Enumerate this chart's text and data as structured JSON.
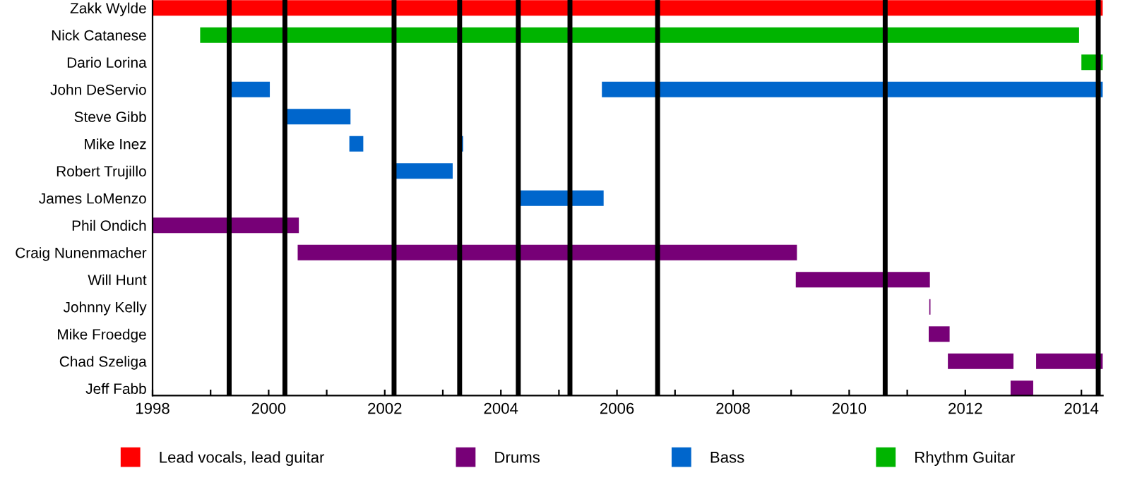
{
  "chart_data": {
    "type": "bar",
    "orientation": "horizontal",
    "categories": [
      "Zakk Wylde",
      "Nick Catanese",
      "Dario Lorina",
      "John DeServio",
      "Steve Gibb",
      "Mike Inez",
      "Robert Trujillo",
      "James LoMenzo",
      "Phil Ondich",
      "Craig Nunenmacher",
      "Will Hunt",
      "Johnny Kelly",
      "Mike Froedge",
      "Chad Szeliga",
      "Jeff Fabb"
    ],
    "series": [
      {
        "name": "Lead vocals, lead guitar",
        "color": "#ff0000",
        "base": [
          1998.0,
          null,
          null,
          null,
          null,
          null,
          null,
          null,
          null,
          null,
          null,
          null,
          null,
          null,
          null
        ],
        "values": [
          16.37,
          null,
          null,
          null,
          null,
          null,
          null,
          null,
          null,
          null,
          null,
          null,
          null,
          null,
          null
        ]
      },
      {
        "name": "Drums",
        "color": "#770077",
        "base": [
          null,
          null,
          null,
          null,
          null,
          null,
          null,
          null,
          1998.0,
          2000.5,
          2009.08,
          2011.38,
          2011.37,
          2011.7,
          2012.78
        ],
        "values": [
          null,
          null,
          null,
          null,
          null,
          null,
          null,
          null,
          2.52,
          8.6,
          2.31,
          0.02,
          0.36,
          1.13,
          0.39
        ]
      },
      {
        "name": "Bass",
        "color": "#0066cc",
        "base": [
          null,
          null,
          null,
          1999.32,
          2000.28,
          2001.39,
          2002.16,
          2004.3,
          null,
          null,
          null,
          null,
          null,
          null,
          null
        ],
        "values": [
          null,
          null,
          null,
          0.7,
          1.13,
          0.24,
          1.01,
          1.47,
          null,
          null,
          null,
          null,
          null,
          null,
          null
        ]
      },
      {
        "name": "Rhythm Guitar",
        "color": "#00b400",
        "base": [
          null,
          1998.82,
          2014.0,
          null,
          null,
          null,
          null,
          null,
          null,
          null,
          null,
          null,
          null,
          null,
          null
        ],
        "values": [
          null,
          15.14,
          0.37,
          null,
          null,
          null,
          null,
          null,
          null,
          null,
          null,
          null,
          null,
          null,
          null
        ]
      },
      {
        "color": "#0066cc",
        "base": [
          null,
          null,
          null,
          2005.74,
          null,
          2003.31,
          null,
          null,
          null,
          null,
          null,
          null,
          null,
          null,
          null
        ],
        "values": [
          null,
          null,
          null,
          8.63,
          null,
          0.04,
          null,
          null,
          null,
          null,
          null,
          null,
          null,
          null,
          null
        ]
      },
      {
        "color": "#770077",
        "base": [
          null,
          null,
          null,
          null,
          null,
          null,
          null,
          null,
          null,
          null,
          null,
          null,
          null,
          2013.22,
          null
        ],
        "values": [
          null,
          null,
          null,
          null,
          null,
          null,
          null,
          null,
          null,
          null,
          null,
          null,
          null,
          1.15,
          null
        ]
      }
    ],
    "xlim": [
      1998,
      2014.37
    ],
    "xticks": [
      1998,
      {
        "value": 1999,
        "label": null
      },
      2000,
      {
        "value": 2001,
        "label": null
      },
      2002,
      {
        "value": 2003,
        "label": null
      },
      2004,
      {
        "value": 2005,
        "label": null
      },
      2006,
      {
        "value": 2007,
        "label": null
      },
      2008,
      {
        "value": 2009,
        "label": null
      },
      2010,
      {
        "value": 2011,
        "label": null
      },
      2012,
      {
        "value": 2013,
        "label": null
      },
      2014
    ],
    "ref_lines": [
      {
        "axis": "x",
        "value": 1999.32,
        "color": "#000000"
      },
      {
        "axis": "x",
        "value": 2000.28,
        "color": "#000000"
      },
      {
        "axis": "x",
        "value": 2002.16,
        "color": "#000000"
      },
      {
        "axis": "x",
        "value": 2003.29,
        "color": "#000000"
      },
      {
        "axis": "x",
        "value": 2004.3,
        "color": "#000000"
      },
      {
        "axis": "x",
        "value": 2005.19,
        "color": "#000000"
      },
      {
        "axis": "x",
        "value": 2006.7,
        "color": "#000000"
      },
      {
        "axis": "x",
        "value": 2010.62,
        "color": "#000000"
      },
      {
        "axis": "x",
        "value": 2014.29,
        "color": "#000000"
      }
    ],
    "grid": false,
    "legend": "bottom"
  }
}
